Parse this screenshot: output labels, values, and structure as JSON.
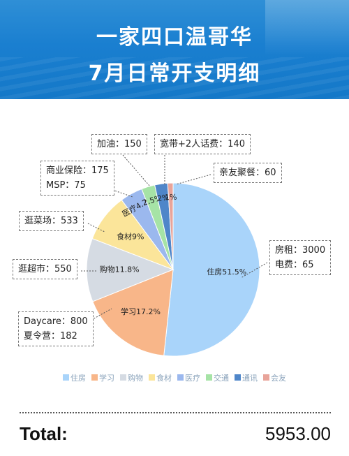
{
  "header": {
    "title_line1": "一家四口温哥华",
    "title_line2": "7月日常开支明细"
  },
  "chart_data": {
    "type": "pie",
    "legend_position": "bottom",
    "slices": [
      {
        "name": "住房",
        "label": "住房51.5%",
        "value": 51.5,
        "color": "#a9d4fa"
      },
      {
        "name": "学习",
        "label": "学习17.2%",
        "value": 17.2,
        "color": "#f8b689"
      },
      {
        "name": "购物",
        "label": "购物11.8%",
        "value": 11.8,
        "color": "#d5dbe3"
      },
      {
        "name": "食材",
        "label": "食材9%",
        "value": 9.0,
        "color": "#fbe59a"
      },
      {
        "name": "医疗",
        "label": "医疗4.2%",
        "value": 4.2,
        "color": "#9bb8ee"
      },
      {
        "name": "交通",
        "label": "2.5%",
        "value": 2.5,
        "color": "#a6e3a6"
      },
      {
        "name": "通讯",
        "label": "2%",
        "value": 2.4,
        "color": "#4f86c9"
      },
      {
        "name": "会友",
        "label": "1%",
        "value": 1.0,
        "color": "#e8a49a"
      }
    ]
  },
  "annotations": [
    {
      "id": "fuel",
      "lines": [
        "加油：150"
      ]
    },
    {
      "id": "phone",
      "lines": [
        "宽带+2人话费：140"
      ]
    },
    {
      "id": "insurance",
      "lines": [
        "商业保险：175",
        "MSP：75"
      ]
    },
    {
      "id": "friends",
      "lines": [
        "亲友聚餐：60"
      ]
    },
    {
      "id": "grocery",
      "lines": [
        "逛菜场：533"
      ]
    },
    {
      "id": "supermarket",
      "lines": [
        "逛超市：550"
      ]
    },
    {
      "id": "housing",
      "lines": [
        "房租：3000",
        "电费：65"
      ]
    },
    {
      "id": "study",
      "lines": [
        "Daycare：800",
        "夏令营：182"
      ]
    }
  ],
  "footer": {
    "total_label": "Total:",
    "total_value": "5953.00"
  }
}
